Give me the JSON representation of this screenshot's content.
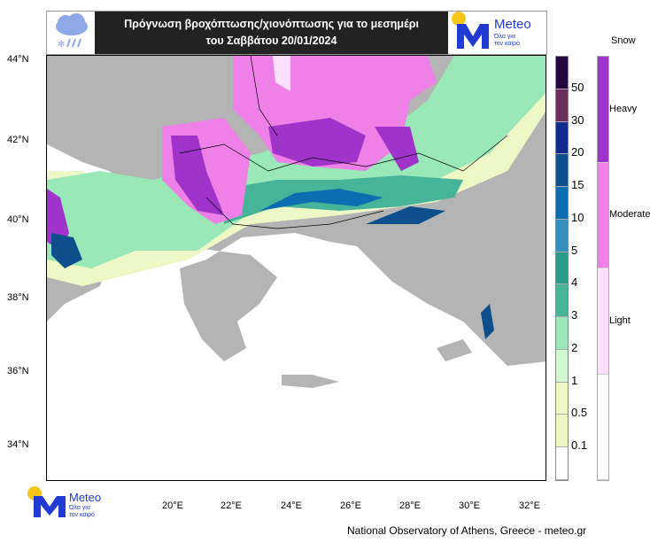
{
  "header": {
    "title_line1": "Πρόγνωση βροχόπτωσης/χιονόπτωσης για το μεσημέρι",
    "title_line2": "του Σαββάτου 20/01/2024",
    "weather_icon": "cloud-rain-snow-icon"
  },
  "logo": {
    "name": "Meteo",
    "tagline_line1": "Όλα για",
    "tagline_line2": "τον καιρό",
    "brand_color": "#1f3bd1",
    "sun_color": "#f5c518"
  },
  "map": {
    "lat_ticks": [
      "44°N",
      "42°N",
      "40°N",
      "38°N",
      "36°N",
      "34°N"
    ],
    "lon_ticks": [
      "20°E",
      "22°E",
      "24°E",
      "26°E",
      "28°E",
      "30°E",
      "32°E"
    ],
    "land_color": "#b4b4b4",
    "sea_color": "#ffffff"
  },
  "precip_legend": {
    "labels": [
      "50",
      "30",
      "20",
      "15",
      "10",
      "5",
      "4",
      "3",
      "2",
      "1",
      "0.5",
      "0.1"
    ],
    "colors": [
      "#25063f",
      "#6b2d5c",
      "#102a8e",
      "#0c4f8c",
      "#0a6eb0",
      "#3690bf",
      "#2b9c8b",
      "#46b498",
      "#9ae8b8",
      "#d0f7d2",
      "#eef8c6",
      "#eef6c4",
      "#ffffff"
    ]
  },
  "snow_legend": {
    "title": "Snow",
    "levels": [
      {
        "label": "Heavy",
        "color": "#a033c9"
      },
      {
        "label": "Moderate",
        "color": "#ee80e8"
      },
      {
        "label": "Light",
        "color": "#fde0fb"
      },
      {
        "label": "",
        "color": "#ffffff"
      }
    ]
  },
  "footer": {
    "credit": "National Observatory of Athens, Greece - meteo.gr"
  }
}
